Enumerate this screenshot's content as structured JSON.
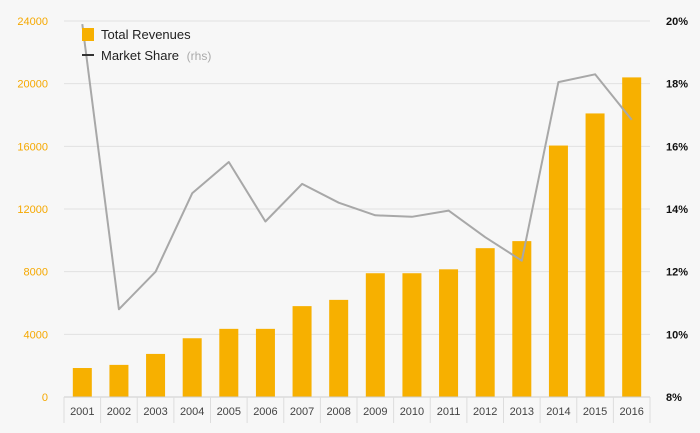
{
  "chart_data": {
    "type": "bar",
    "categories": [
      "2001",
      "2002",
      "2003",
      "2004",
      "2005",
      "2006",
      "2007",
      "2008",
      "2009",
      "2010",
      "2011",
      "2012",
      "2013",
      "2014",
      "2015",
      "2016"
    ],
    "series": [
      {
        "name": "Total Revenues",
        "type": "bar",
        "axis": "left",
        "values": [
          1850,
          2050,
          2750,
          3750,
          4350,
          4350,
          5800,
          6200,
          7900,
          7900,
          8150,
          9500,
          9950,
          16050,
          18100,
          20400
        ]
      },
      {
        "name": "Market Share",
        "type": "line",
        "axis": "right",
        "values": [
          19.9,
          10.8,
          12.0,
          14.5,
          15.5,
          13.6,
          14.8,
          14.2,
          13.8,
          13.75,
          13.95,
          13.1,
          12.35,
          18.05,
          18.3,
          16.85
        ]
      }
    ],
    "ylim_left": [
      0,
      24000
    ],
    "yticks_left": [
      "0",
      "4000",
      "8000",
      "12000",
      "16000",
      "20000",
      "24000"
    ],
    "ylim_right": [
      8,
      20
    ],
    "yticks_right": [
      "8%",
      "10%",
      "12%",
      "14%",
      "16%",
      "18%",
      "20%"
    ],
    "legend": {
      "position": "top-left",
      "items": [
        {
          "label": "Total Revenues",
          "suffix": ""
        },
        {
          "label": "Market Share",
          "suffix": "(rhs)"
        }
      ]
    },
    "grid": true
  },
  "colors": {
    "bar": "#f7b000",
    "line": "#a8a8a8",
    "grid": "#e2e2e2",
    "left_ticks": "#f5a800",
    "right_ticks": "#111111",
    "legend_line": "#333333"
  }
}
